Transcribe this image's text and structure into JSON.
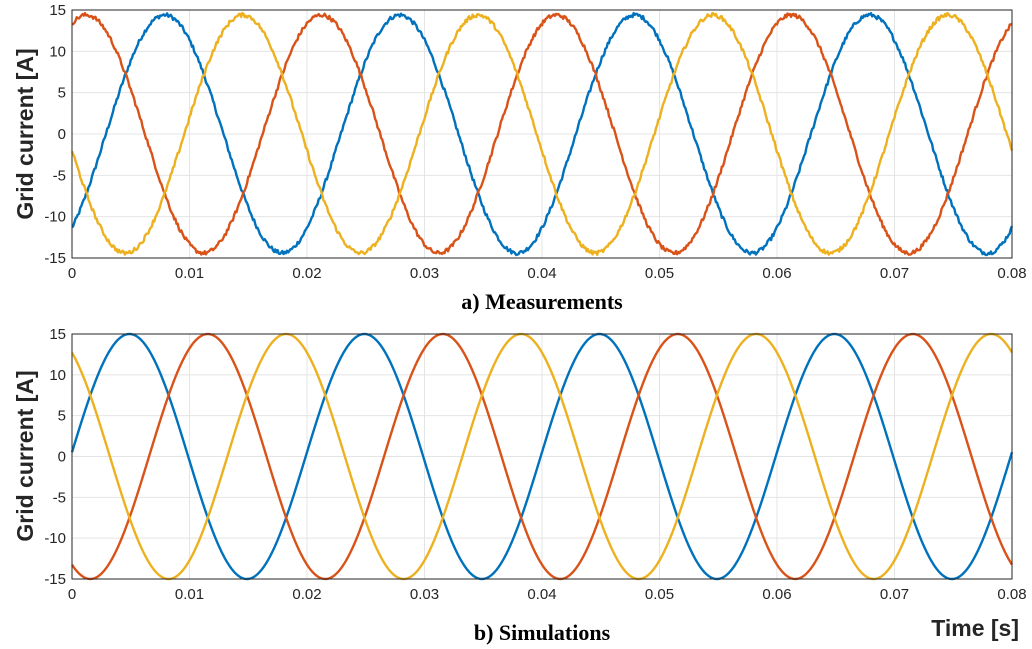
{
  "chart_data": [
    {
      "type": "line",
      "caption": "a) Measurements",
      "ylabel": "Grid current [A]",
      "xlabel": "",
      "xlim": [
        0,
        0.08
      ],
      "ylim": [
        -15,
        15
      ],
      "grid": true,
      "xticks": [
        "0",
        "0.01",
        "0.02",
        "0.03",
        "0.04",
        "0.05",
        "0.06",
        "0.07",
        "0.08"
      ],
      "yticks": [
        "-15",
        "-10",
        "-5",
        "0",
        "5",
        "10",
        "15"
      ],
      "waveform": {
        "amplitude": 14.4,
        "frequency_hz": 50,
        "noise": 0.25
      },
      "series": [
        {
          "color": "#0072BD",
          "phase_deg": -52
        },
        {
          "color": "#D95319",
          "phase_deg": 68
        },
        {
          "color": "#EDB120",
          "phase_deg": 188
        }
      ]
    },
    {
      "type": "line",
      "caption": "b) Simulations",
      "ylabel": "Grid current [A]",
      "xlabel": "Time [s]",
      "xlim": [
        0,
        0.08
      ],
      "ylim": [
        -15,
        15
      ],
      "grid": true,
      "xticks": [
        "0",
        "0.01",
        "0.02",
        "0.03",
        "0.04",
        "0.05",
        "0.06",
        "0.07",
        "0.08"
      ],
      "yticks": [
        "-15",
        "-10",
        "-5",
        "0",
        "5",
        "10",
        "15"
      ],
      "waveform": {
        "amplitude": 15,
        "frequency_hz": 50,
        "noise": 0
      },
      "series": [
        {
          "color": "#0072BD",
          "phase_deg": 2
        },
        {
          "color": "#D95319",
          "phase_deg": -118
        },
        {
          "color": "#EDB120",
          "phase_deg": 122
        }
      ]
    }
  ]
}
